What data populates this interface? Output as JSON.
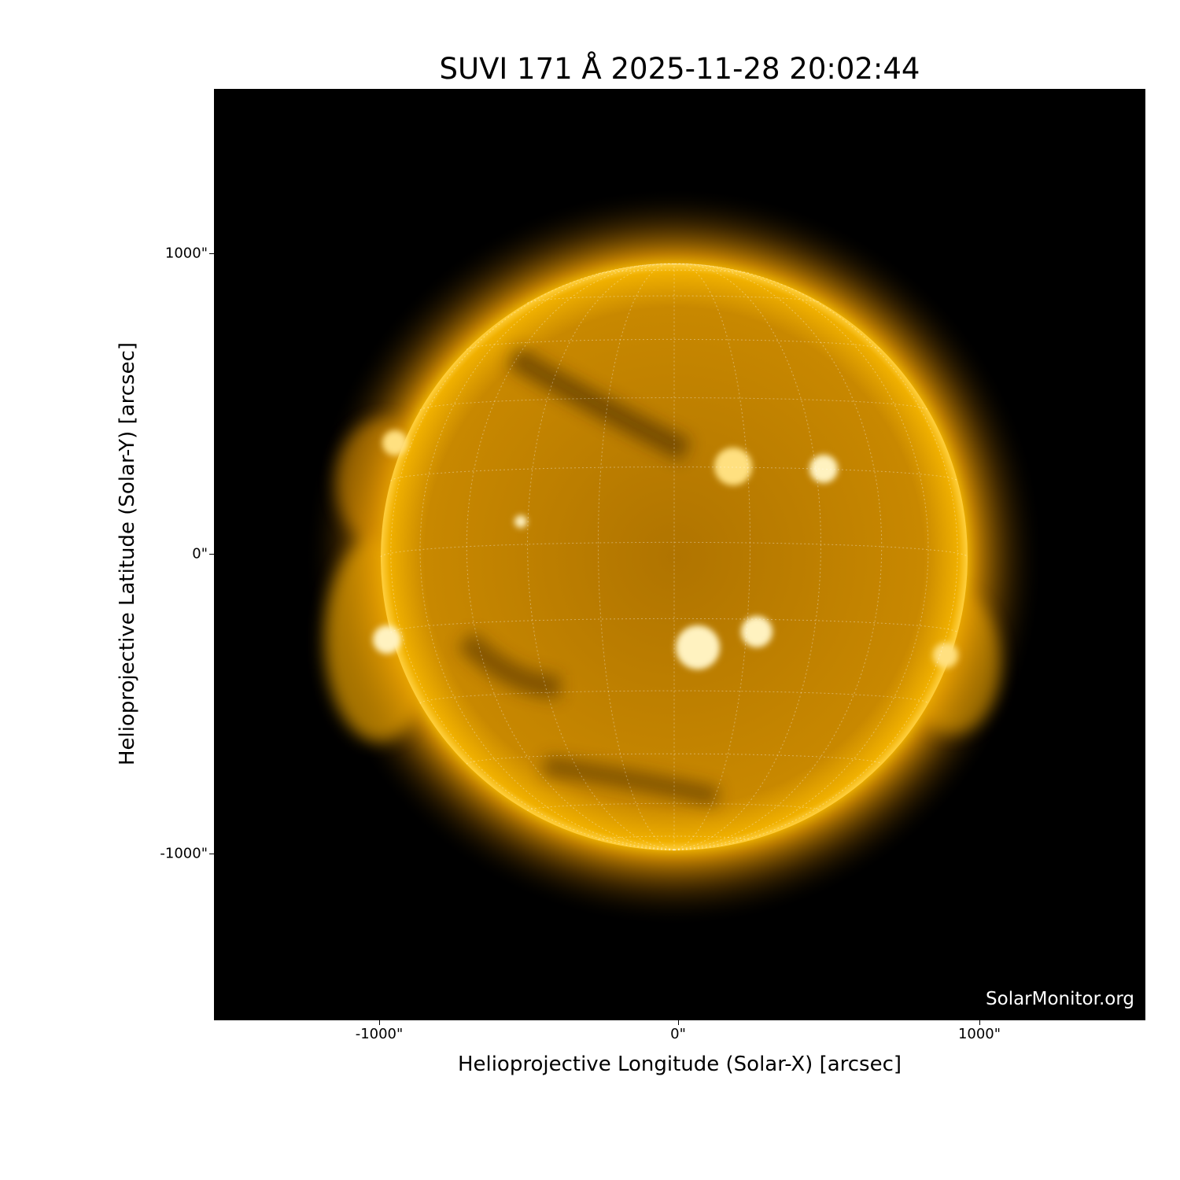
{
  "title": "SUVI 171 Å 2025-11-28 20:02:44",
  "xaxis": {
    "label": "Helioprojective Longitude (Solar-X) [arcsec]",
    "ticks": [
      "-1000\"",
      "0\"",
      "1000\""
    ]
  },
  "yaxis": {
    "label": "Helioprojective Latitude (Solar-Y) [arcsec]",
    "ticks": [
      "1000\"",
      "0\"",
      "-1000\""
    ]
  },
  "watermark": "SolarMonitor.org",
  "colors": {
    "background": "#000000",
    "sun": "#f0a800",
    "bright": "#fff2c0"
  }
}
